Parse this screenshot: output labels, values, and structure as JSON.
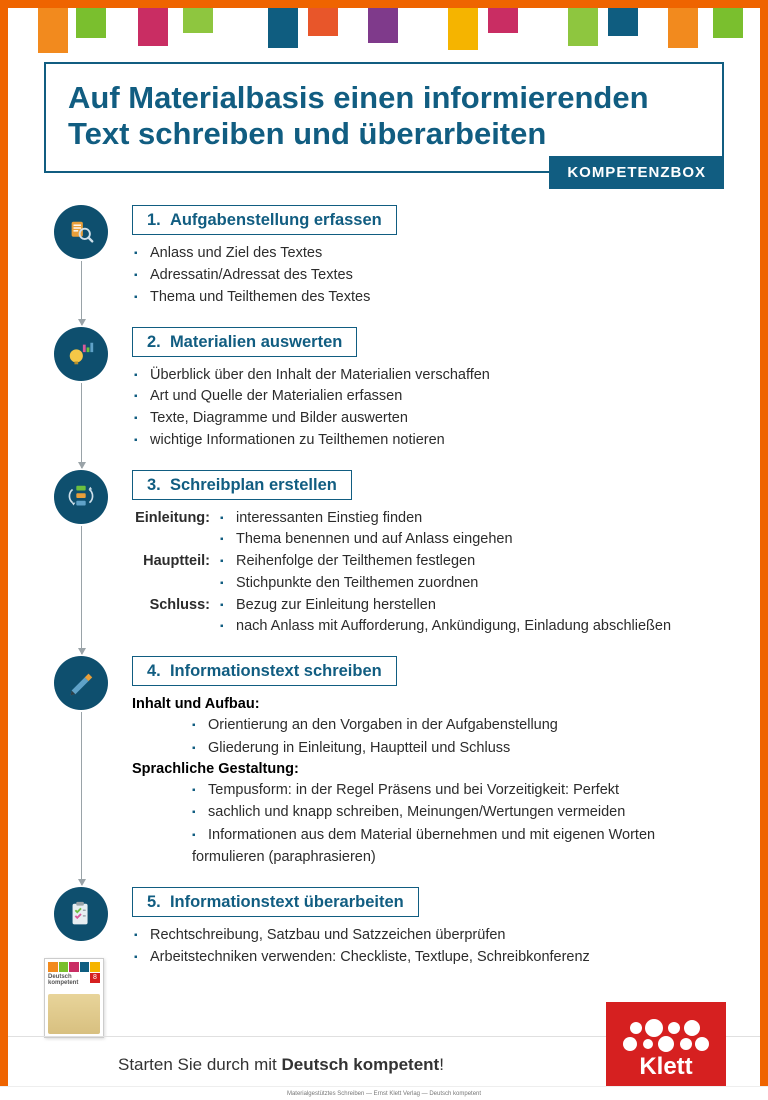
{
  "colors": {
    "frame": "#ef6400",
    "accent": "#115d81",
    "circle": "#0e4f6e",
    "badge_bg": "#115d81",
    "logo_red": "#d62020",
    "flag_palette": [
      "#f28a1e",
      "#7abf2e",
      "#c92d63",
      "#8ec63f",
      "#0f5d80",
      "#e8562a",
      "#7f3a8b",
      "#f5b400",
      "#c92d63",
      "#8ec63f",
      "#0f5d80",
      "#f28a1e",
      "#7abf2e"
    ]
  },
  "heading": "Auf Materialbasis einen informierenden Text schreiben und überarbeiten",
  "badge": "KOMPETENZBOX",
  "steps": [
    {
      "num": "1.",
      "title": "Aufgabenstellung erfassen",
      "icon": "search-doc",
      "bullets": [
        "Anlass und Ziel des Textes",
        "Adressatin/Adressat des Textes",
        "Thema und Teilthemen des Textes"
      ]
    },
    {
      "num": "2.",
      "title": "Materialien auswerten",
      "icon": "bulb-chart",
      "bullets": [
        "Überblick über den Inhalt der Materialien verschaffen",
        "Art und Quelle der Materialien erfassen",
        "Texte, Diagramme und Bilder auswerten",
        "wichtige Informationen zu Teilthemen notieren"
      ]
    },
    {
      "num": "3.",
      "title": "Schreibplan erstellen",
      "icon": "flow",
      "sections": [
        {
          "label": "Einleitung:",
          "items": [
            "interessanten Einstieg finden",
            "Thema benennen und auf Anlass eingehen"
          ]
        },
        {
          "label": "Hauptteil:",
          "items": [
            "Reihenfolge der Teilthemen festlegen",
            "Stichpunkte den Teilthemen zuordnen"
          ]
        },
        {
          "label": "Schluss:",
          "items": [
            "Bezug zur Einleitung herstellen",
            "nach Anlass mit Aufforderung, Ankündigung, Einladung abschließen"
          ]
        }
      ]
    },
    {
      "num": "4.",
      "title": "Informationstext schreiben",
      "icon": "pen",
      "nested": [
        {
          "heading": "Inhalt und Aufbau:",
          "items": [
            "Orientierung an den Vorgaben in der Aufgabenstellung",
            "Gliederung in Einleitung, Hauptteil und Schluss"
          ]
        },
        {
          "heading": "Sprachliche Gestaltung:",
          "items": [
            "Tempusform: in der Regel Präsens und bei Vorzeitigkeit: Perfekt",
            "sachlich und knapp schreiben, Meinungen/Wertungen vermeiden",
            "Informationen aus dem Material übernehmen und mit eigenen Worten formulieren (paraphrasieren)"
          ]
        }
      ]
    },
    {
      "num": "5.",
      "title": "Informationstext überarbeiten",
      "icon": "checklist",
      "bullets": [
        "Rechtschreibung, Satzbau und Satzzeichen überprüfen",
        "Arbeitstechniken verwenden: Checkliste, Textlupe, Schreibkonferenz"
      ]
    }
  ],
  "footer": {
    "text_prefix": "Starten Sie durch mit ",
    "text_bold": "Deutsch kompetent",
    "text_suffix": "!",
    "logo_text": "Klett",
    "thumb_title": "Deutsch kompetent",
    "thumb_badge": "8"
  },
  "caption": "Materialgestütztes Schreiben — Ernst Klett Verlag — Deutsch kompetent"
}
